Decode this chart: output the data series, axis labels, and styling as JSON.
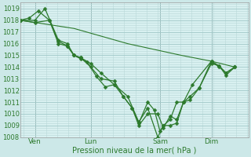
{
  "background_color": "#cce8e8",
  "plot_bg_color": "#d8f0f0",
  "grid_major_color": "#a0c8c8",
  "grid_minor_color": "#b8d8d8",
  "line_color": "#2d7a2d",
  "marker_color": "#2d7a2d",
  "xlabel": "Pression niveau de la mer( hPa )",
  "ylim": [
    1008,
    1019.5
  ],
  "yticks": [
    1008,
    1009,
    1010,
    1011,
    1012,
    1013,
    1014,
    1015,
    1016,
    1017,
    1018,
    1019
  ],
  "xtick_labels": [
    "Ven",
    "Lun",
    "Sam",
    "Dim"
  ],
  "xtick_positions": [
    0.065,
    0.315,
    0.625,
    0.855
  ],
  "xlim": [
    0.0,
    1.02
  ],
  "series": [
    [
      0.0,
      1018.0,
      0.04,
      1018.2,
      0.08,
      1018.8,
      0.13,
      1018.0,
      0.17,
      1016.0,
      0.21,
      1015.8,
      0.24,
      1015.0,
      0.27,
      1014.7,
      0.3,
      1014.4,
      0.34,
      1013.2,
      0.38,
      1012.3,
      0.42,
      1012.5,
      0.46,
      1011.5,
      0.5,
      1010.5,
      0.53,
      1009.2,
      0.57,
      1011.0,
      0.6,
      1010.3,
      0.625,
      1008.5,
      0.64,
      1009.0,
      0.67,
      1009.0,
      0.7,
      1009.2,
      0.73,
      1011.0,
      0.76,
      1011.2,
      0.8,
      1012.2,
      0.855,
      1014.5,
      0.89,
      1014.1,
      0.92,
      1013.3,
      0.96,
      1014.0
    ],
    [
      0.0,
      1018.0,
      0.065,
      1017.8,
      0.13,
      1018.0,
      0.17,
      1016.2,
      0.21,
      1015.8,
      0.24,
      1015.0,
      0.27,
      1014.8,
      0.315,
      1014.3,
      0.36,
      1013.5,
      0.42,
      1012.5,
      0.48,
      1011.5,
      0.53,
      1009.3,
      0.57,
      1010.5,
      0.615,
      1008.0,
      0.64,
      1009.0,
      0.67,
      1009.5,
      0.7,
      1011.0,
      0.73,
      1011.0,
      0.77,
      1012.5,
      0.855,
      1014.5,
      0.89,
      1014.0,
      0.92,
      1013.5,
      0.96,
      1014.0
    ],
    [
      0.0,
      1018.0,
      0.065,
      1018.0,
      0.11,
      1019.0,
      0.17,
      1016.3,
      0.21,
      1016.0,
      0.24,
      1015.0,
      0.27,
      1014.8,
      0.315,
      1014.0,
      0.36,
      1013.0,
      0.42,
      1012.8,
      0.46,
      1011.5,
      0.5,
      1010.5,
      0.53,
      1009.0,
      0.57,
      1010.0,
      0.615,
      1010.0,
      0.64,
      1008.8,
      0.67,
      1009.8,
      0.7,
      1009.5,
      0.73,
      1011.0,
      0.76,
      1011.5,
      0.8,
      1012.2,
      0.855,
      1014.3,
      0.89,
      1014.1,
      0.92,
      1013.5,
      0.96,
      1014.0
    ],
    [
      0.0,
      1018.0,
      0.24,
      1017.3,
      0.48,
      1016.0,
      0.72,
      1015.0,
      0.855,
      1014.5,
      0.96,
      1014.0
    ]
  ],
  "series_styles": [
    {
      "lw": 0.9,
      "ms": 2.5,
      "marker": "D",
      "ls": "-"
    },
    {
      "lw": 0.9,
      "ms": 2.5,
      "marker": "D",
      "ls": "-"
    },
    {
      "lw": 0.9,
      "ms": 2.5,
      "marker": "D",
      "ls": "-"
    },
    {
      "lw": 0.8,
      "ms": 0,
      "marker": null,
      "ls": "-"
    }
  ]
}
